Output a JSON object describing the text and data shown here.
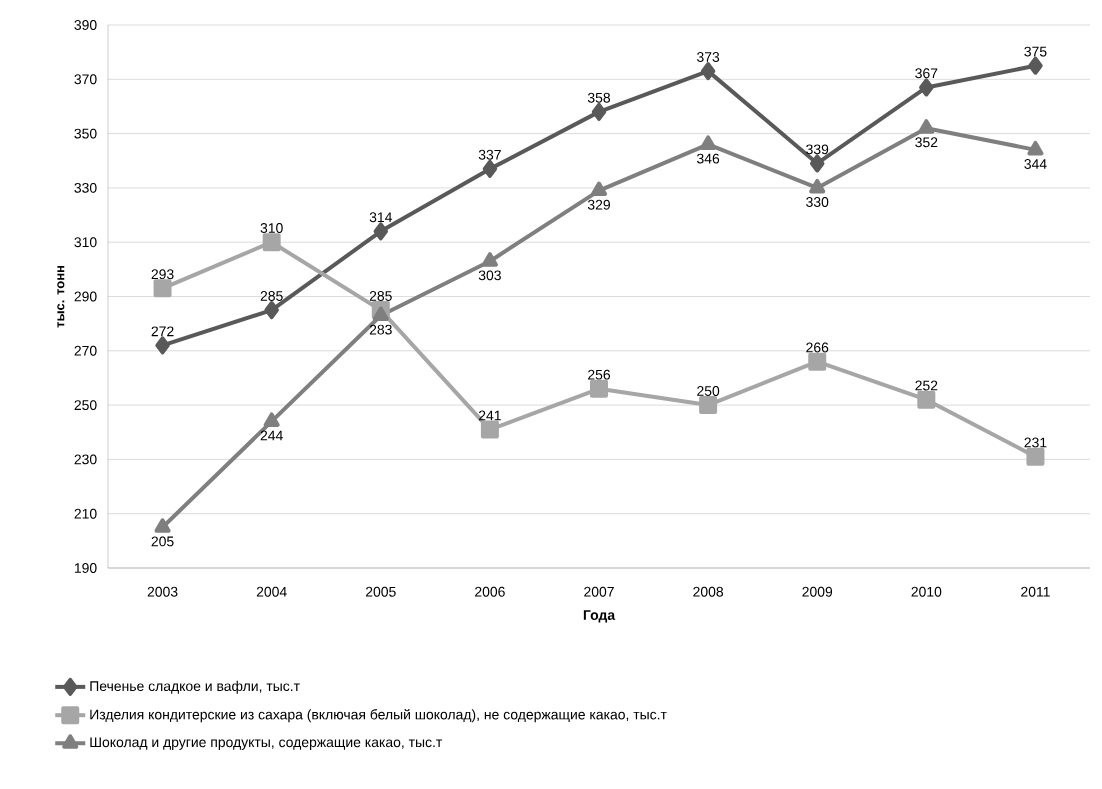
{
  "chart_data": {
    "type": "line",
    "xlabel": "Года",
    "ylabel": "тыс. тонн",
    "categories": [
      "2003",
      "2004",
      "2005",
      "2006",
      "2007",
      "2008",
      "2009",
      "2010",
      "2011"
    ],
    "series": [
      {
        "name": "Печенье сладкое и вафли, тыс.т",
        "color": "#595959",
        "marker": "diamond",
        "values": [
          272,
          285,
          314,
          337,
          358,
          373,
          339,
          367,
          375
        ]
      },
      {
        "name": "Изделия кондитерские из сахара (включая белый шоколад), не содержащие какао, тыс.т",
        "color": "#a6a6a6",
        "marker": "square",
        "values": [
          293,
          310,
          285,
          241,
          256,
          250,
          266,
          252,
          231
        ]
      },
      {
        "name": "Шоколад и другие продукты, содержащие какао, тыс.т",
        "color": "#7f7f7f",
        "marker": "triangle",
        "values": [
          205,
          244,
          283,
          303,
          329,
          346,
          330,
          352,
          344
        ]
      }
    ],
    "ylim": [
      190,
      390
    ],
    "yticks": [
      190,
      210,
      230,
      250,
      270,
      290,
      310,
      330,
      350,
      370,
      390
    ],
    "grid": "y",
    "legend": "bottom",
    "data_labels": true,
    "line_style": "solid"
  }
}
